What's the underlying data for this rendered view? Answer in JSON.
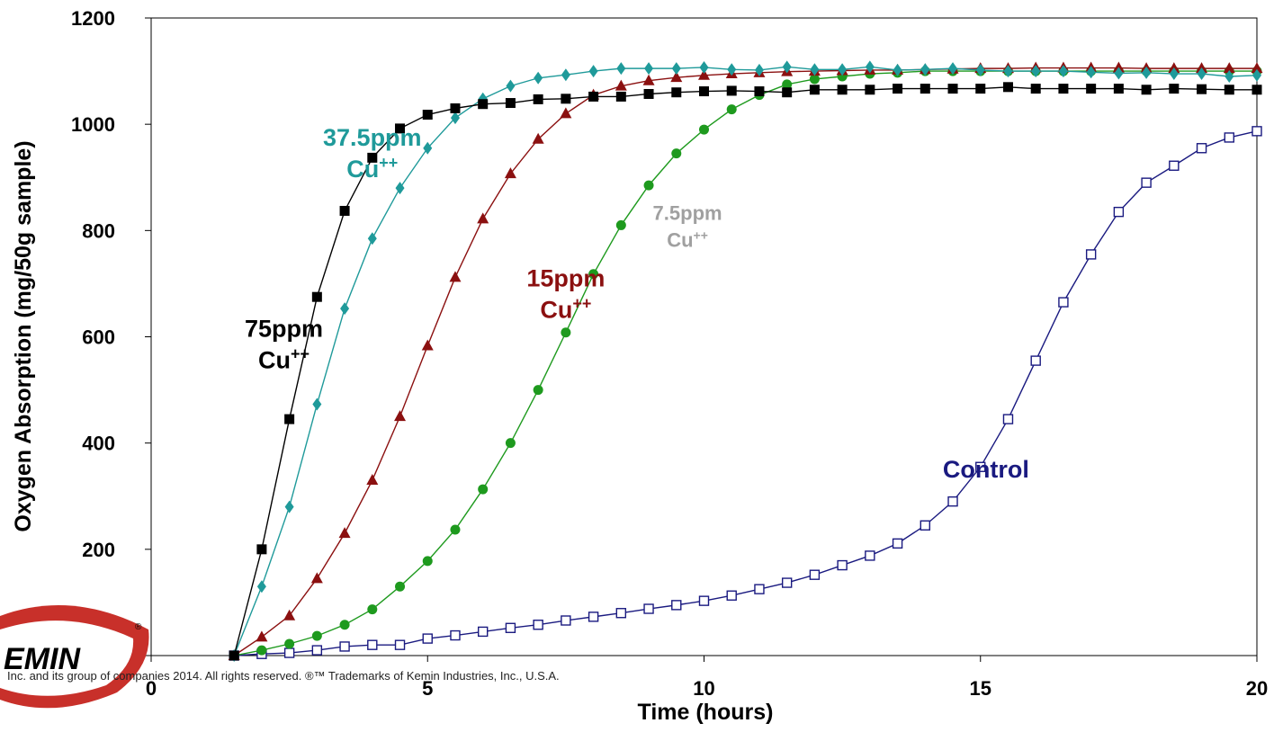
{
  "footer_text": "Inc. and its group of companies 2014. All rights reserved. ®™ Trademarks of Kemin Industries, Inc., U.S.A.",
  "logo": {
    "text": "EMIN",
    "mark": "®"
  },
  "colors": {
    "control": "#1a1a80",
    "cu_7_5": "#1e9a1e",
    "cu_15": "#8b1010",
    "cu_37_5": "#1f9a9a",
    "cu_75": "#000000",
    "label_7_5": "#a0a0a0",
    "logo_red": "#c8302a"
  },
  "chart_data": {
    "type": "line",
    "xlabel": "Time (hours)",
    "ylabel": "Oxygen Absorption (mg/50g sample)",
    "xlim": [
      0,
      20
    ],
    "ylim": [
      0,
      1200
    ],
    "xticks": [
      "0",
      "5",
      "10",
      "15",
      "20"
    ],
    "yticks": [
      "200",
      "400",
      "600",
      "800",
      "1000",
      "1200"
    ],
    "grid": false,
    "annotations": [
      {
        "series": "control",
        "lines": [
          "Control"
        ],
        "x": 15.1,
        "y": 335
      },
      {
        "series": "cu_7_5",
        "lines": [
          "7.5ppm",
          "Cu++"
        ],
        "x": 9.7,
        "y": 820
      },
      {
        "series": "cu_15",
        "lines": [
          "15ppm",
          "Cu++"
        ],
        "x": 7.5,
        "y": 695
      },
      {
        "series": "cu_37_5",
        "lines": [
          "37.5ppm",
          "Cu++"
        ],
        "x": 4.0,
        "y": 960
      },
      {
        "series": "cu_75",
        "lines": [
          "75ppm",
          "Cu++"
        ],
        "x": 2.4,
        "y": 600
      }
    ],
    "series": [
      {
        "key": "control",
        "marker": "square-open",
        "x": [
          1.5,
          2.0,
          2.5,
          3.0,
          3.5,
          4.0,
          4.5,
          5.0,
          5.5,
          6.0,
          6.5,
          7.0,
          7.5,
          8.0,
          8.5,
          9.0,
          9.5,
          10.0,
          10.5,
          11.0,
          11.5,
          12.0,
          12.5,
          13.0,
          13.5,
          14.0,
          14.5,
          15.0,
          15.5,
          16.0,
          16.5,
          17.0,
          17.5,
          18.0,
          18.5,
          19.0,
          19.5,
          20.0
        ],
        "y": [
          0,
          3,
          5,
          10,
          17,
          20,
          20,
          32,
          38,
          45,
          52,
          58,
          66,
          73,
          80,
          88,
          95,
          103,
          113,
          125,
          137,
          152,
          170,
          188,
          211,
          245,
          290,
          355,
          445,
          555,
          665,
          755,
          835,
          890,
          922,
          955,
          975,
          987
        ]
      },
      {
        "key": "cu_7_5",
        "marker": "circle",
        "x": [
          1.5,
          2.0,
          2.5,
          3.0,
          3.5,
          4.0,
          4.5,
          5.0,
          5.5,
          6.0,
          6.5,
          7.0,
          7.5,
          8.0,
          8.5,
          9.0,
          9.5,
          10.0,
          10.5,
          11.0,
          11.5,
          12.0,
          12.5,
          13.0,
          13.5,
          14.0,
          14.5,
          15.0,
          15.5,
          16.0,
          16.5,
          17.0,
          17.5,
          18.0,
          18.5,
          19.0,
          19.5,
          20.0
        ],
        "y": [
          0,
          10,
          22,
          37,
          58,
          87,
          130,
          178,
          237,
          313,
          400,
          500,
          608,
          718,
          810,
          885,
          945,
          990,
          1028,
          1055,
          1075,
          1085,
          1090,
          1095,
          1097,
          1100,
          1100,
          1100,
          1100,
          1100,
          1100,
          1100,
          1100,
          1100,
          1100,
          1100,
          1100,
          1100
        ]
      },
      {
        "key": "cu_15",
        "marker": "triangle",
        "x": [
          1.5,
          2.0,
          2.5,
          3.0,
          3.5,
          4.0,
          4.5,
          5.0,
          5.5,
          6.0,
          6.5,
          7.0,
          7.5,
          8.0,
          8.5,
          9.0,
          9.5,
          10.0,
          10.5,
          11.0,
          11.5,
          12.0,
          12.5,
          13.0,
          13.5,
          14.0,
          14.5,
          15.0,
          15.5,
          16.0,
          16.5,
          17.0,
          17.5,
          18.0,
          18.5,
          19.0,
          19.5,
          20.0
        ],
        "y": [
          0,
          35,
          75,
          145,
          230,
          330,
          450,
          583,
          712,
          822,
          907,
          972,
          1020,
          1055,
          1072,
          1082,
          1088,
          1092,
          1095,
          1097,
          1099,
          1100,
          1101,
          1102,
          1102,
          1103,
          1104,
          1105,
          1105,
          1106,
          1106,
          1106,
          1106,
          1105,
          1105,
          1105,
          1105,
          1105
        ]
      },
      {
        "key": "cu_37_5",
        "marker": "diamond",
        "x": [
          1.5,
          2.0,
          2.5,
          3.0,
          3.5,
          4.0,
          4.5,
          5.0,
          5.5,
          6.0,
          6.5,
          7.0,
          7.5,
          8.0,
          8.5,
          9.0,
          9.5,
          10.0,
          10.5,
          11.0,
          11.5,
          12.0,
          12.5,
          13.0,
          13.5,
          14.0,
          14.5,
          15.0,
          15.5,
          16.0,
          16.5,
          17.0,
          17.5,
          18.0,
          18.5,
          19.0,
          19.5,
          20.0
        ],
        "y": [
          0,
          130,
          280,
          473,
          653,
          785,
          880,
          955,
          1012,
          1048,
          1072,
          1087,
          1093,
          1100,
          1105,
          1105,
          1105,
          1107,
          1103,
          1102,
          1108,
          1103,
          1103,
          1108,
          1102,
          1103,
          1105,
          1102,
          1100,
          1100,
          1100,
          1098,
          1096,
          1097,
          1095,
          1095,
          1090,
          1092
        ]
      },
      {
        "key": "cu_75",
        "marker": "square",
        "x": [
          1.5,
          2.0,
          2.5,
          3.0,
          3.5,
          4.0,
          4.5,
          5.0,
          5.5,
          6.0,
          6.5,
          7.0,
          7.5,
          8.0,
          8.5,
          9.0,
          9.5,
          10.0,
          10.5,
          11.0,
          11.5,
          12.0,
          12.5,
          13.0,
          13.5,
          14.0,
          14.5,
          15.0,
          15.5,
          16.0,
          16.5,
          17.0,
          17.5,
          18.0,
          18.5,
          19.0,
          19.5,
          20.0
        ],
        "y": [
          0,
          200,
          445,
          675,
          837,
          937,
          992,
          1018,
          1030,
          1038,
          1040,
          1047,
          1048,
          1052,
          1052,
          1057,
          1060,
          1062,
          1063,
          1062,
          1060,
          1065,
          1065,
          1065,
          1067,
          1067,
          1067,
          1067,
          1070,
          1067,
          1067,
          1067,
          1067,
          1065,
          1067,
          1066,
          1065,
          1065
        ]
      }
    ]
  }
}
